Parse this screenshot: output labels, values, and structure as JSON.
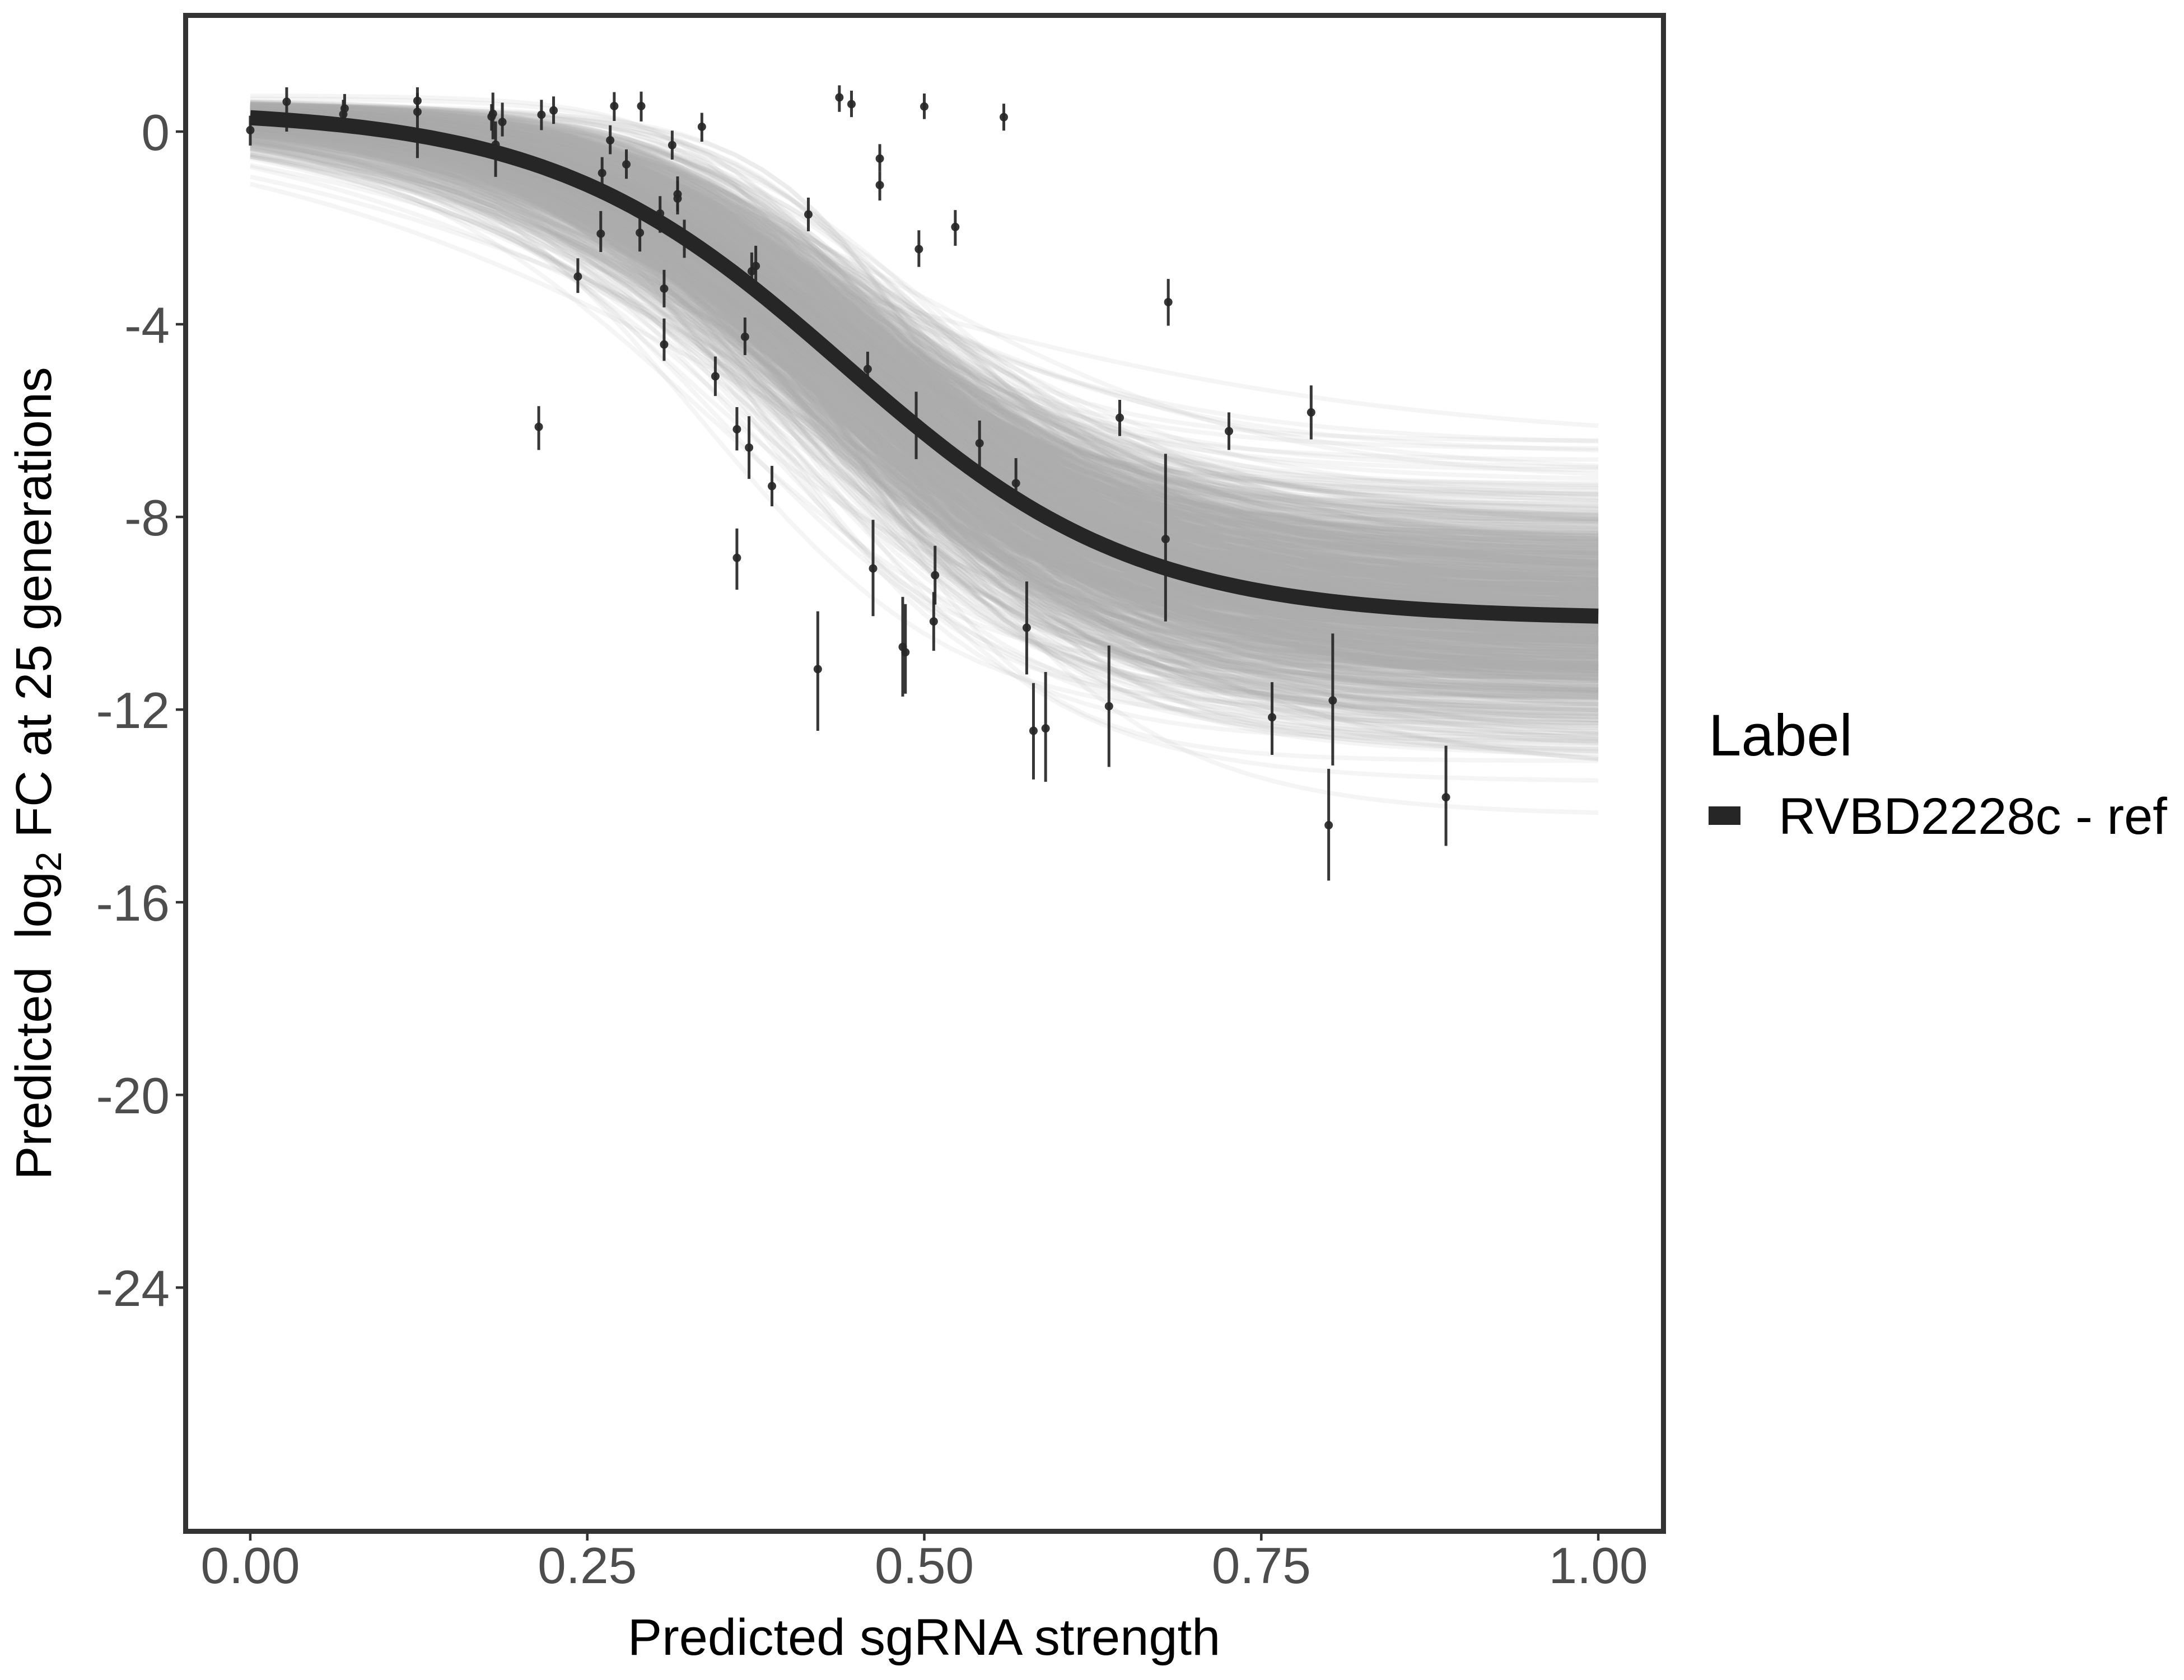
{
  "chart_data": {
    "type": "scatter",
    "title": "",
    "xlabel": "Predicted sgRNA strength",
    "ylabel": {
      "prefix": "Predicted  log",
      "subscript": "2",
      "suffix": " FC at 25 generations"
    },
    "xlim": [
      -0.0465,
      1.0465
    ],
    "ylim": [
      -29.02,
      2.36
    ],
    "grid": false,
    "x_ticks": [
      0,
      0.25,
      0.5,
      0.75,
      1
    ],
    "x_tick_labels": [
      "0.00",
      "0.25",
      "0.50",
      "0.75",
      "1.00"
    ],
    "y_ticks": [
      0,
      -4,
      -8,
      -12,
      -16,
      -20,
      -24
    ],
    "y_tick_labels": [
      "0",
      "-4",
      "-8",
      "-12",
      "-16",
      "-20",
      "-24"
    ],
    "legend": {
      "title": "Label",
      "placement": "right",
      "entries": [
        {
          "label": "RVBD2228c - ref",
          "color": "#262626"
        }
      ]
    },
    "fit": {
      "series": "RVBD2228c - ref",
      "model": "logistic",
      "upper": 0.47,
      "lower": -10.12,
      "slope": 9.2,
      "midpoint": 0.44,
      "x_range": [
        0,
        1
      ],
      "color": "#262626"
    },
    "posterior_draws": {
      "count": 1000,
      "model": "logistic",
      "upper_mean": 0.47,
      "upper_sd": 0.1,
      "lower_mean": -10.12,
      "lower_sd": 1.25,
      "slope_median": 9.2,
      "slope_log_sd": 0.2,
      "midpoint_mean": 0.44,
      "midpoint_sd": 0.035,
      "x_range": [
        0,
        1
      ],
      "color": "#a9a9a9"
    },
    "points": [
      {
        "x": 0.0,
        "y": 0.03,
        "lo": -0.29,
        "hi": 0.33
      },
      {
        "x": 0.027,
        "y": 0.62,
        "lo": 0.0,
        "hi": 0.92
      },
      {
        "x": 0.07,
        "y": 0.48,
        "lo": 0.2,
        "hi": 0.78
      },
      {
        "x": 0.069,
        "y": 0.36,
        "lo": 0.1,
        "hi": 0.66
      },
      {
        "x": 0.124,
        "y": 0.64,
        "lo": 0.3,
        "hi": 0.92
      },
      {
        "x": 0.124,
        "y": 0.41,
        "lo": -0.55,
        "hi": 0.8
      },
      {
        "x": 0.179,
        "y": 0.31,
        "lo": 0.02,
        "hi": 0.57
      },
      {
        "x": 0.18,
        "y": 0.37,
        "lo": -0.16,
        "hi": 0.81
      },
      {
        "x": 0.187,
        "y": 0.2,
        "lo": -0.1,
        "hi": 0.6
      },
      {
        "x": 0.182,
        "y": -0.27,
        "lo": -0.94,
        "hi": 0.21
      },
      {
        "x": 0.216,
        "y": 0.35,
        "lo": 0.03,
        "hi": 0.66
      },
      {
        "x": 0.225,
        "y": 0.44,
        "lo": 0.16,
        "hi": 0.73
      },
      {
        "x": 0.214,
        "y": -6.13,
        "lo": -6.61,
        "hi": -5.7
      },
      {
        "x": 0.243,
        "y": -3.01,
        "lo": -3.35,
        "hi": -2.63
      },
      {
        "x": 0.26,
        "y": -2.12,
        "lo": -2.5,
        "hi": -1.65
      },
      {
        "x": 0.261,
        "y": -0.86,
        "lo": -1.16,
        "hi": -0.53
      },
      {
        "x": 0.267,
        "y": -0.18,
        "lo": -0.47,
        "hi": 0.13
      },
      {
        "x": 0.27,
        "y": 0.53,
        "lo": 0.22,
        "hi": 0.82
      },
      {
        "x": 0.279,
        "y": -0.68,
        "lo": -0.98,
        "hi": -0.37
      },
      {
        "x": 0.289,
        "y": -2.1,
        "lo": -2.49,
        "hi": -1.69
      },
      {
        "x": 0.29,
        "y": 0.53,
        "lo": 0.21,
        "hi": 0.83
      },
      {
        "x": 0.304,
        "y": -1.7,
        "lo": -2.1,
        "hi": -1.34
      },
      {
        "x": 0.307,
        "y": -3.26,
        "lo": -3.65,
        "hi": -2.87
      },
      {
        "x": 0.307,
        "y": -4.42,
        "lo": -4.76,
        "hi": -3.88
      },
      {
        "x": 0.313,
        "y": -0.28,
        "lo": -0.58,
        "hi": 0.02
      },
      {
        "x": 0.317,
        "y": -1.3,
        "lo": -1.66,
        "hi": -0.93
      },
      {
        "x": 0.317,
        "y": -1.39,
        "lo": -1.72,
        "hi": -1.02
      },
      {
        "x": 0.322,
        "y": -2.24,
        "lo": -2.62,
        "hi": -1.83
      },
      {
        "x": 0.335,
        "y": 0.1,
        "lo": -0.21,
        "hi": 0.39
      },
      {
        "x": 0.345,
        "y": -5.08,
        "lo": -5.49,
        "hi": -4.67
      },
      {
        "x": 0.361,
        "y": -6.18,
        "lo": -6.62,
        "hi": -5.72
      },
      {
        "x": 0.361,
        "y": -8.85,
        "lo": -9.51,
        "hi": -8.24
      },
      {
        "x": 0.367,
        "y": -4.26,
        "lo": -4.64,
        "hi": -3.86
      },
      {
        "x": 0.37,
        "y": -6.56,
        "lo": -7.21,
        "hi": -5.91
      },
      {
        "x": 0.372,
        "y": -2.9,
        "lo": -3.28,
        "hi": -2.51
      },
      {
        "x": 0.375,
        "y": -2.79,
        "lo": -3.19,
        "hi": -2.37
      },
      {
        "x": 0.387,
        "y": -7.36,
        "lo": -7.78,
        "hi": -6.94
      },
      {
        "x": 0.414,
        "y": -1.72,
        "lo": -2.07,
        "hi": -1.37
      },
      {
        "x": 0.421,
        "y": -11.16,
        "lo": -12.44,
        "hi": -9.96
      },
      {
        "x": 0.437,
        "y": 0.71,
        "lo": 0.41,
        "hi": 0.96
      },
      {
        "x": 0.446,
        "y": 0.57,
        "lo": 0.3,
        "hi": 0.85
      },
      {
        "x": 0.458,
        "y": -4.93,
        "lo": -5.27,
        "hi": -4.57
      },
      {
        "x": 0.462,
        "y": -9.07,
        "lo": -10.06,
        "hi": -8.06
      },
      {
        "x": 0.467,
        "y": -0.56,
        "lo": -0.83,
        "hi": -0.26
      },
      {
        "x": 0.467,
        "y": -1.11,
        "lo": -1.43,
        "hi": -0.83
      },
      {
        "x": 0.484,
        "y": -10.7,
        "lo": -11.73,
        "hi": -9.66
      },
      {
        "x": 0.486,
        "y": -10.81,
        "lo": -11.67,
        "hi": -9.81
      },
      {
        "x": 0.494,
        "y": -6.1,
        "lo": -6.8,
        "hi": -5.4
      },
      {
        "x": 0.496,
        "y": -2.44,
        "lo": -2.81,
        "hi": -2.05
      },
      {
        "x": 0.5,
        "y": 0.52,
        "lo": 0.26,
        "hi": 0.79
      },
      {
        "x": 0.507,
        "y": -10.17,
        "lo": -10.78,
        "hi": -9.56
      },
      {
        "x": 0.508,
        "y": -9.21,
        "lo": -9.82,
        "hi": -8.6
      },
      {
        "x": 0.523,
        "y": -1.98,
        "lo": -2.37,
        "hi": -1.63
      },
      {
        "x": 0.541,
        "y": -6.47,
        "lo": -6.97,
        "hi": -6.0
      },
      {
        "x": 0.559,
        "y": 0.3,
        "lo": 0.02,
        "hi": 0.58
      },
      {
        "x": 0.568,
        "y": -7.3,
        "lo": -7.72,
        "hi": -6.78
      },
      {
        "x": 0.576,
        "y": -10.3,
        "lo": -11.27,
        "hi": -9.34
      },
      {
        "x": 0.581,
        "y": -12.44,
        "lo": -13.45,
        "hi": -11.45
      },
      {
        "x": 0.59,
        "y": -12.39,
        "lo": -13.5,
        "hi": -11.22
      },
      {
        "x": 0.637,
        "y": -11.93,
        "lo": -13.19,
        "hi": -10.67
      },
      {
        "x": 0.645,
        "y": -5.94,
        "lo": -6.32,
        "hi": -5.57
      },
      {
        "x": 0.679,
        "y": -8.46,
        "lo": -10.17,
        "hi": -6.69
      },
      {
        "x": 0.681,
        "y": -3.54,
        "lo": -4.03,
        "hi": -3.06
      },
      {
        "x": 0.726,
        "y": -6.22,
        "lo": -6.61,
        "hi": -5.83
      },
      {
        "x": 0.758,
        "y": -12.16,
        "lo": -12.94,
        "hi": -11.43
      },
      {
        "x": 0.787,
        "y": -5.83,
        "lo": -6.39,
        "hi": -5.27
      },
      {
        "x": 0.8,
        "y": -14.4,
        "lo": -15.55,
        "hi": -13.23
      },
      {
        "x": 0.803,
        "y": -11.81,
        "lo": -13.16,
        "hi": -10.42
      },
      {
        "x": 0.887,
        "y": -13.82,
        "lo": -14.83,
        "hi": -12.75
      }
    ]
  }
}
